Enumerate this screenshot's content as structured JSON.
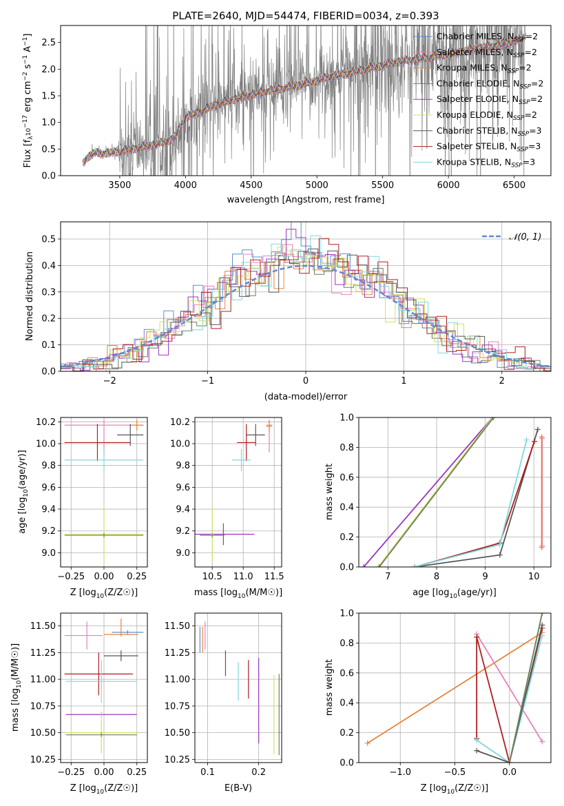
{
  "colors": {
    "chabrier_miles": "#5b8bd0",
    "salpeter_miles": "#e87fb8",
    "kroupa_miles": "#e8833a",
    "chabrier_elodie": "#6b7f5e",
    "salpeter_elodie": "#9a34c0",
    "kroupa_elodie": "#d6df5a",
    "chabrier_stelib": "#555555",
    "salpeter_stelib": "#b01c1c",
    "kroupa_stelib": "#7fd8dc",
    "grid": "#b0b0b0",
    "data": "#7f7f7f"
  },
  "chart_data": [
    {
      "id": "spectrum",
      "type": "line",
      "title": "PLATE=2640, MJD=54474, FIBERID=0034, z=0.393",
      "xlabel": "wavelength [Angstrom, rest frame]",
      "ylabel": "Flux [f_λ10^-17 erg cm^-2 s^-1 A^-1]",
      "xlim": [
        3050,
        6780
      ],
      "ylim": [
        0,
        2.82
      ],
      "xticks": [
        3500,
        4000,
        4500,
        5000,
        5500,
        6000,
        6500
      ],
      "yticks": [
        0.0,
        0.5,
        1.0,
        1.5,
        2.0,
        2.5
      ],
      "legend_position": "top-right",
      "legend": [
        {
          "name": "Chabrier MILES, N",
          "sub": "SSP",
          "tail": "=2",
          "color_key": "chabrier_miles"
        },
        {
          "name": "Salpeter MILES, N",
          "sub": "SSP",
          "tail": "=2",
          "color_key": "salpeter_miles"
        },
        {
          "name": "Kroupa MILES, N",
          "sub": "SSP",
          "tail": "=2",
          "color_key": "kroupa_miles"
        },
        {
          "name": "Chabrier ELODIE, N",
          "sub": "SSP",
          "tail": "=2",
          "color_key": "chabrier_elodie"
        },
        {
          "name": "Salpeter ELODIE, N",
          "sub": "SSP",
          "tail": "=2",
          "color_key": "salpeter_elodie"
        },
        {
          "name": "Kroupa ELODIE, N",
          "sub": "SSP",
          "tail": "=2",
          "color_key": "kroupa_elodie"
        },
        {
          "name": "Chabrier STELIB, N",
          "sub": "SSP",
          "tail": "=3",
          "color_key": "chabrier_stelib"
        },
        {
          "name": "Salpeter STELIB, N",
          "sub": "SSP",
          "tail": "=3",
          "color_key": "salpeter_stelib"
        },
        {
          "name": "Kroupa STELIB, N",
          "sub": "SSP",
          "tail": "=3",
          "color_key": "kroupa_stelib"
        }
      ],
      "model_continuum": {
        "x": [
          3220,
          3260,
          3300,
          3400,
          3500,
          3600,
          3700,
          3800,
          3900,
          3950,
          4000,
          4100,
          4200,
          4300,
          4400,
          4500,
          4600,
          4700,
          4800,
          4900,
          5000,
          5100,
          5200,
          5300,
          5400,
          5500,
          5600,
          5700,
          5800,
          5900,
          6000,
          6100,
          6200,
          6300,
          6400,
          6500,
          6580
        ],
        "y": [
          0.25,
          0.35,
          0.42,
          0.42,
          0.45,
          0.5,
          0.55,
          0.6,
          0.68,
          0.85,
          1.1,
          1.18,
          1.3,
          1.38,
          1.45,
          1.52,
          1.58,
          1.62,
          1.67,
          1.72,
          1.78,
          1.86,
          1.9,
          1.96,
          2.02,
          2.07,
          2.13,
          2.17,
          2.2,
          2.24,
          2.28,
          2.33,
          2.38,
          2.42,
          2.46,
          2.52,
          2.58
        ]
      }
    },
    {
      "id": "residuals",
      "type": "histogram",
      "xlabel": "(data-model)/error",
      "ylabel": "Normed distribution",
      "xlim": [
        -2.5,
        2.5
      ],
      "ylim": [
        0,
        0.565
      ],
      "xticks": [
        -2,
        -1,
        0,
        1,
        2
      ],
      "yticks": [
        0.0,
        0.1,
        0.2,
        0.3,
        0.4,
        0.5
      ],
      "legend_position": "top-right",
      "legend": [
        {
          "name": "𝒩(0, 1)",
          "color_key": "chabrier_miles",
          "style": "dashed"
        }
      ],
      "bin_width": 0.1
    },
    {
      "id": "age_vs_Z",
      "type": "errorbar",
      "xlabel": "Z [log10(Z/Z☉)]",
      "ylabel": "age [log10(age/yr)]",
      "xlim": [
        -0.33,
        0.33
      ],
      "ylim": [
        8.87,
        10.24
      ],
      "xticks": [
        -0.25,
        0.0,
        0.25
      ],
      "xticklabels": [
        "−0.25",
        "0.00",
        "0.25"
      ],
      "yticks": [
        9.0,
        9.2,
        9.4,
        9.6,
        9.8,
        10.0,
        10.2
      ],
      "points": [
        {
          "key": "salpeter_miles",
          "x": 0.0,
          "xerr": [
            0.3,
            0.3
          ],
          "y": 10.17,
          "yerr": [
            0.25,
            0.05
          ]
        },
        {
          "key": "kroupa_miles",
          "x": 0.25,
          "xerr": [
            0.05,
            0.05
          ],
          "y": 10.17,
          "yerr": [
            0.05,
            0.05
          ]
        },
        {
          "key": "chabrier_stelib",
          "x": 0.2,
          "xerr": [
            0.1,
            0.1
          ],
          "y": 10.08,
          "yerr": [
            0.1,
            0.1
          ]
        },
        {
          "key": "salpeter_stelib",
          "x": -0.05,
          "xerr": [
            0.25,
            0.25
          ],
          "y": 10.01,
          "yerr": [
            0.17,
            0.17
          ]
        },
        {
          "key": "kroupa_stelib",
          "x": 0.0,
          "xerr": [
            0.3,
            0.3
          ],
          "y": 9.85,
          "yerr": [
            0.1,
            0.1
          ]
        },
        {
          "key": "kroupa_elodie",
          "x": 0.0,
          "xerr": [
            0.3,
            0.3
          ],
          "y": 9.17,
          "yerr": [
            0.25,
            0.25
          ]
        },
        {
          "key": "chabrier_elodie",
          "x": 0.0,
          "xerr": [
            0.3,
            0.3
          ],
          "y": 9.16,
          "yerr": [
            0.02,
            0.02
          ]
        }
      ]
    },
    {
      "id": "age_vs_mass",
      "type": "errorbar",
      "xlabel": "mass [log10(M/M☉)]",
      "ylabel": "",
      "xlim": [
        10.22,
        11.62
      ],
      "ylim": [
        8.87,
        10.24
      ],
      "xticks": [
        10.5,
        11.0,
        11.5
      ],
      "yticks": [
        9.0,
        9.2,
        9.4,
        9.6,
        9.8,
        10.0,
        10.2
      ],
      "points": [
        {
          "key": "salpeter_miles",
          "x": 11.42,
          "xerr": [
            0.05,
            0.05
          ],
          "y": 10.17,
          "yerr": [
            0.25,
            0.05
          ]
        },
        {
          "key": "kroupa_miles",
          "x": 11.42,
          "xerr": [
            0.05,
            0.05
          ],
          "y": 10.16,
          "yerr": [
            0.05,
            0.05
          ]
        },
        {
          "key": "chabrier_stelib",
          "x": 11.2,
          "xerr": [
            0.15,
            0.15
          ],
          "y": 10.08,
          "yerr": [
            0.1,
            0.1
          ]
        },
        {
          "key": "salpeter_stelib",
          "x": 11.05,
          "xerr": [
            0.15,
            0.15
          ],
          "y": 10.01,
          "yerr": [
            0.17,
            0.17
          ]
        },
        {
          "key": "kroupa_stelib",
          "x": 10.97,
          "xerr": [
            0.15,
            0.15
          ],
          "y": 9.85,
          "yerr": [
            0.1,
            0.1
          ]
        },
        {
          "key": "salpeter_elodie",
          "x": 10.68,
          "xerr": [
            0.5,
            0.5
          ],
          "y": 9.17,
          "yerr": [
            0.1,
            0.1
          ]
        },
        {
          "key": "kroupa_elodie",
          "x": 10.5,
          "xerr": [
            0.02,
            0.02
          ],
          "y": 9.17,
          "yerr": [
            0.25,
            0.25
          ]
        },
        {
          "key": "chabrier_elodie",
          "x": 10.5,
          "xerr": [
            0.2,
            0.2
          ],
          "y": 9.16,
          "yerr": [
            0.02,
            0.02
          ]
        }
      ]
    },
    {
      "id": "weight_vs_age",
      "type": "line",
      "xlabel": "age [log10(age/yr)]",
      "ylabel": "mass weight",
      "xlim": [
        6.4,
        10.35
      ],
      "ylim": [
        0,
        1.0
      ],
      "xticks": [
        7,
        8,
        9,
        10
      ],
      "yticks": [
        0.0,
        0.2,
        0.4,
        0.6,
        0.8,
        1.0
      ],
      "series": [
        {
          "key": "salpeter_elodie",
          "x": [
            6.5,
            9.15
          ],
          "y": [
            0.0,
            1.0
          ]
        },
        {
          "key": "kroupa_elodie",
          "x": [
            6.8,
            9.15
          ],
          "y": [
            0.0,
            1.0
          ]
        },
        {
          "key": "chabrier_elodie",
          "x": [
            6.82,
            9.17
          ],
          "y": [
            0.0,
            1.0
          ]
        },
        {
          "key": "chabrier_stelib",
          "x": [
            7.55,
            9.3,
            10.08
          ],
          "y": [
            0.0,
            0.08,
            0.92
          ]
        },
        {
          "key": "salpeter_stelib",
          "x": [
            7.55,
            9.3,
            10.01
          ],
          "y": [
            0.0,
            0.16,
            0.84
          ]
        },
        {
          "key": "kroupa_stelib",
          "x": [
            7.55,
            9.3,
            9.85
          ],
          "y": [
            0.0,
            0.15,
            0.85
          ]
        },
        {
          "key": "salpeter_miles",
          "x": [
            10.17,
            10.17
          ],
          "y": [
            0.14,
            0.86
          ]
        },
        {
          "key": "kroupa_miles",
          "x": [
            10.16,
            10.16
          ],
          "y": [
            0.13,
            0.87
          ]
        }
      ]
    },
    {
      "id": "mass_vs_Z",
      "type": "errorbar",
      "xlabel": "Z [log10(Z/Z☉)]",
      "ylabel": "mass [log10(M/M☉)]",
      "xlim": [
        -0.33,
        0.33
      ],
      "ylim": [
        10.22,
        11.62
      ],
      "xticks": [
        -0.25,
        0.0,
        0.25
      ],
      "xticklabels": [
        "−0.25",
        "0.00",
        "0.25"
      ],
      "yticks": [
        10.25,
        10.5,
        10.75,
        11.0,
        11.25,
        11.5
      ],
      "points": [
        {
          "key": "chabrier_miles",
          "x": 0.18,
          "xerr": [
            0.12,
            0.12
          ],
          "y": 11.44,
          "yerr": [
            0.02,
            0.02
          ]
        },
        {
          "key": "salpeter_miles",
          "x": -0.13,
          "xerr": [
            0.17,
            0.12
          ],
          "y": 11.41,
          "yerr": [
            0.13,
            0.13
          ]
        },
        {
          "key": "kroupa_miles",
          "x": 0.13,
          "xerr": [
            0.13,
            0.13
          ],
          "y": 11.42,
          "yerr": [
            0.02,
            0.15
          ]
        },
        {
          "key": "chabrier_stelib",
          "x": 0.13,
          "xerr": [
            0.13,
            0.13
          ],
          "y": 11.22,
          "yerr": [
            0.05,
            0.05
          ]
        },
        {
          "key": "salpeter_stelib",
          "x": -0.04,
          "xerr": [
            0.26,
            0.26
          ],
          "y": 11.05,
          "yerr": [
            0.2,
            0.2
          ]
        },
        {
          "key": "kroupa_stelib",
          "x": -0.02,
          "xerr": [
            0.27,
            0.27
          ],
          "y": 10.98,
          "yerr": [
            0.2,
            0.2
          ]
        },
        {
          "key": "salpeter_elodie",
          "x": -0.02,
          "xerr": [
            0.27,
            0.27
          ],
          "y": 10.67,
          "yerr": [
            0.02,
            0.02
          ]
        },
        {
          "key": "kroupa_elodie",
          "x": -0.02,
          "xerr": [
            0.27,
            0.27
          ],
          "y": 10.5,
          "yerr": [
            0.2,
            0.2
          ]
        },
        {
          "key": "chabrier_elodie",
          "x": -0.02,
          "xerr": [
            0.27,
            0.27
          ],
          "y": 10.48,
          "yerr": [
            0.02,
            0.02
          ]
        }
      ]
    },
    {
      "id": "mass_vs_ebv",
      "type": "errorbar",
      "xlabel": "E(B-V)",
      "ylabel": "",
      "xlim": [
        0.075,
        0.245
      ],
      "ylim": [
        10.22,
        11.62
      ],
      "xticks": [
        0.1,
        0.2
      ],
      "yticks": [
        10.25,
        10.5,
        10.75,
        11.0,
        11.25,
        11.5
      ],
      "points": [
        {
          "key": "chabrier_miles",
          "x": 0.085,
          "xerr": [
            0,
            0
          ],
          "y": 11.37,
          "yerr": [
            0.12,
            0.12
          ]
        },
        {
          "key": "salpeter_miles",
          "x": 0.095,
          "xerr": [
            0,
            0
          ],
          "y": 11.41,
          "yerr": [
            0.13,
            0.13
          ]
        },
        {
          "key": "kroupa_miles",
          "x": 0.09,
          "xerr": [
            0,
            0
          ],
          "y": 11.37,
          "yerr": [
            0.12,
            0.12
          ]
        },
        {
          "key": "chabrier_stelib",
          "x": 0.135,
          "xerr": [
            0,
            0
          ],
          "y": 11.15,
          "yerr": [
            0.12,
            0.12
          ]
        },
        {
          "key": "kroupa_stelib",
          "x": 0.16,
          "xerr": [
            0,
            0
          ],
          "y": 10.98,
          "yerr": [
            0.18,
            0.18
          ]
        },
        {
          "key": "salpeter_stelib",
          "x": 0.18,
          "xerr": [
            0,
            0
          ],
          "y": 11.0,
          "yerr": [
            0.18,
            0.18
          ]
        },
        {
          "key": "salpeter_elodie",
          "x": 0.2,
          "xerr": [
            0,
            0
          ],
          "y": 10.8,
          "yerr": [
            0.4,
            0.4
          ]
        },
        {
          "key": "kroupa_elodie",
          "x": 0.23,
          "xerr": [
            0,
            0
          ],
          "y": 10.67,
          "yerr": [
            0.37,
            0.37
          ]
        },
        {
          "key": "chabrier_elodie",
          "x": 0.24,
          "xerr": [
            0,
            0
          ],
          "y": 10.67,
          "yerr": [
            0.38,
            0.38
          ]
        }
      ]
    },
    {
      "id": "weight_vs_Z",
      "type": "line",
      "xlabel": "Z [log10(Z/Z☉)]",
      "ylabel": "mass weight",
      "xlim": [
        -1.38,
        0.38
      ],
      "ylim": [
        0,
        1.0
      ],
      "xticks": [
        -1.0,
        -0.5,
        0.0
      ],
      "xticklabels": [
        "−1.0",
        "−0.5",
        "0.0"
      ],
      "yticks": [
        0.0,
        0.2,
        0.4,
        0.6,
        0.8,
        1.0
      ],
      "series": [
        {
          "key": "kroupa_miles",
          "x": [
            -1.3,
            0.3
          ],
          "y": [
            0.13,
            0.87
          ]
        },
        {
          "key": "salpeter_miles",
          "x": [
            -0.3,
            0.3
          ],
          "y": [
            0.86,
            0.14
          ]
        },
        {
          "key": "salpeter_stelib",
          "x": [
            -0.3,
            -0.3,
            0.0,
            0.3
          ],
          "y": [
            0.16,
            0.84,
            0.0,
            0.9
          ]
        },
        {
          "key": "kroupa_stelib",
          "x": [
            -0.3,
            0.0,
            0.3
          ],
          "y": [
            0.15,
            0.0,
            0.85
          ]
        },
        {
          "key": "chabrier_stelib",
          "x": [
            -0.3,
            0.0,
            0.3
          ],
          "y": [
            0.08,
            0.0,
            0.92
          ]
        },
        {
          "key": "kroupa_elodie",
          "x": [
            0.0,
            0.3
          ],
          "y": [
            0.0,
            1.0
          ]
        },
        {
          "key": "chabrier_elodie",
          "x": [
            0.0,
            0.3
          ],
          "y": [
            0.0,
            1.0
          ]
        }
      ]
    }
  ]
}
